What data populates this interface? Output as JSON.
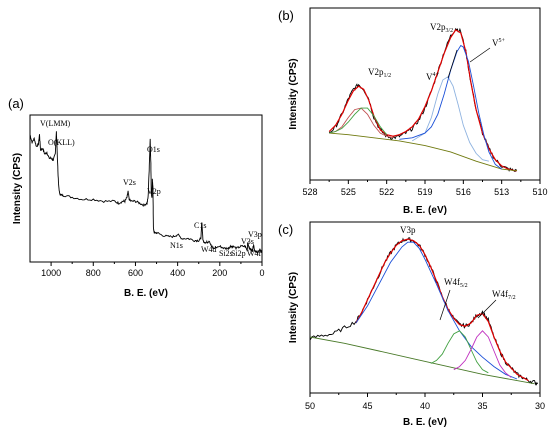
{
  "chart_data": [
    {
      "panel": "(a)",
      "type": "line",
      "xlabel": "B. E. (eV)",
      "ylabel": "Intensity (CPS)",
      "xlim": [
        1100,
        0
      ],
      "xticks": [
        "1000",
        "800",
        "600",
        "400",
        "200",
        "0"
      ],
      "tick_values": [
        1000,
        800,
        600,
        400,
        200,
        0
      ],
      "grid": false,
      "annotations": [
        {
          "text": "V(LMM)",
          "x": 1055
        },
        {
          "text": "O(KLL)",
          "x": 975
        },
        {
          "text": "O1s",
          "x": 530
        },
        {
          "text": "V2s",
          "x": 630
        },
        {
          "text": "V2p",
          "x": 517
        },
        {
          "text": "C1s",
          "x": 285
        },
        {
          "text": "N1s",
          "x": 400
        },
        {
          "text": "W4d",
          "x": 250
        },
        {
          "text": "V3s",
          "x": 68
        },
        {
          "text": "Si2s",
          "x": 150
        },
        {
          "text": "Si2p",
          "x": 100
        },
        {
          "text": "W4f",
          "x": 35
        },
        {
          "text": "V3p",
          "x": 40
        }
      ],
      "series": [
        {
          "values_x": [
            1100,
            1090,
            1080,
            1070,
            1060,
            1055,
            1050,
            1040,
            1030,
            1020,
            1010,
            1000,
            990,
            980,
            975,
            970,
            965,
            960,
            950,
            940,
            900,
            850,
            800,
            750,
            700,
            680,
            660,
            650,
            640,
            635,
            630,
            620,
            600,
            580,
            560,
            545,
            540,
            535,
            530,
            527,
            525,
            522,
            520,
            517,
            515,
            512,
            510,
            500,
            480,
            450,
            420,
            400,
            380,
            350,
            320,
            300,
            290,
            285,
            282,
            280,
            270,
            260,
            250,
            240,
            230,
            200,
            180,
            160,
            150,
            140,
            120,
            100,
            80,
            70,
            68,
            60,
            50,
            45,
            40,
            35,
            30,
            20,
            10,
            0
          ],
          "values_y": [
            90,
            86,
            88,
            84,
            85,
            90,
            82,
            83,
            80,
            81,
            78,
            78,
            77,
            80,
            92,
            78,
            65,
            60,
            59,
            59,
            58,
            57,
            57,
            56,
            56,
            55,
            56,
            56,
            58,
            61,
            57,
            56,
            56,
            55,
            54,
            55,
            58,
            72,
            88,
            75,
            60,
            58,
            67,
            63,
            43,
            40,
            40,
            40,
            39,
            38,
            38,
            39,
            37,
            37,
            36,
            36,
            37,
            45,
            40,
            36,
            35,
            35,
            36,
            33,
            32,
            33,
            32,
            32,
            33,
            33,
            32,
            33,
            33,
            31,
            35,
            32,
            31,
            31,
            34,
            31,
            30,
            30,
            31,
            30
          ]
        }
      ]
    },
    {
      "panel": "(b)",
      "type": "line",
      "xlabel": "B. E. (eV)",
      "ylabel": "Intensity (CPS)",
      "xlim": [
        528,
        510
      ],
      "xticks": [
        "528",
        "525",
        "522",
        "519",
        "516",
        "513",
        "510"
      ],
      "tick_values": [
        528,
        525,
        522,
        519,
        516,
        513,
        510
      ],
      "annotations": [
        {
          "text": "V2p",
          "sub": "1/2",
          "x": 524.3
        },
        {
          "text": "V2p",
          "sub": "3/2",
          "x": 516.6
        },
        {
          "text": "V",
          "sup": "4+",
          "x": 517.6
        },
        {
          "text": "V",
          "sup": "5+",
          "x": 514.2
        }
      ],
      "series": [
        {
          "name_role": "raw",
          "color": "#000000",
          "values_x": [
            526.5,
            526,
            525.5,
            525,
            524.6,
            524.2,
            523.8,
            523.4,
            523,
            522.5,
            522,
            521.5,
            521,
            520.5,
            520,
            519.5,
            519,
            518.5,
            518,
            517.5,
            517,
            516.6,
            516.2,
            515.8,
            515.4,
            515,
            514.5,
            514,
            513.5,
            513,
            512.5,
            512,
            511.8
          ],
          "values_y": [
            0.3,
            0.34,
            0.42,
            0.52,
            0.58,
            0.61,
            0.58,
            0.52,
            0.4,
            0.32,
            0.28,
            0.27,
            0.28,
            0.3,
            0.33,
            0.38,
            0.46,
            0.57,
            0.69,
            0.82,
            0.92,
            0.97,
            0.95,
            0.82,
            0.62,
            0.45,
            0.3,
            0.2,
            0.13,
            0.09,
            0.07,
            0.06,
            0.06
          ]
        },
        {
          "name_role": "fit envelope",
          "color": "#e00000",
          "values_x": [
            526.5,
            526,
            525.5,
            525,
            524.6,
            524.2,
            523.8,
            523.4,
            523,
            522.5,
            522,
            521.5,
            521,
            520.5,
            520,
            519.5,
            519,
            518.5,
            518,
            517.5,
            517,
            516.6,
            516.2,
            515.8,
            515.4,
            515,
            514.5,
            514,
            513.5,
            513,
            512.5,
            512,
            511.8
          ],
          "values_y": [
            0.31,
            0.35,
            0.42,
            0.51,
            0.57,
            0.6,
            0.58,
            0.51,
            0.41,
            0.32,
            0.29,
            0.28,
            0.29,
            0.31,
            0.34,
            0.39,
            0.47,
            0.57,
            0.69,
            0.81,
            0.91,
            0.96,
            0.94,
            0.82,
            0.62,
            0.45,
            0.3,
            0.2,
            0.13,
            0.09,
            0.07,
            0.06,
            0.06
          ]
        },
        {
          "name_role": "background",
          "color": "#707a10",
          "values_x": [
            526.5,
            525,
            523,
            521,
            519,
            517,
            515,
            513,
            512,
            511.8
          ],
          "values_y": [
            0.3,
            0.29,
            0.27,
            0.25,
            0.22,
            0.18,
            0.12,
            0.07,
            0.06,
            0.06
          ]
        },
        {
          "name_role": "V4+ component",
          "color": "#8fb3e0",
          "values_x": [
            520,
            519,
            518.5,
            518,
            517.6,
            517.2,
            516.8,
            516.4,
            516,
            515.5,
            515,
            514.5,
            514
          ],
          "values_y": [
            0.25,
            0.3,
            0.4,
            0.55,
            0.64,
            0.66,
            0.6,
            0.48,
            0.35,
            0.24,
            0.17,
            0.13,
            0.12
          ]
        },
        {
          "name_role": "V5+ component",
          "color": "#1a4fd8",
          "values_x": [
            521,
            520,
            519,
            518.5,
            518,
            517.5,
            517,
            516.5,
            516.2,
            516,
            515.6,
            515.2,
            514.8,
            514.4,
            514,
            513.5,
            513
          ],
          "values_y": [
            0.26,
            0.27,
            0.3,
            0.34,
            0.42,
            0.55,
            0.7,
            0.82,
            0.86,
            0.85,
            0.76,
            0.6,
            0.43,
            0.29,
            0.18,
            0.1,
            0.07
          ]
        },
        {
          "name_role": "V2p1/2 component",
          "color": "#c05050",
          "values_x": [
            526.5,
            526,
            525.5,
            525,
            524.5,
            524,
            523.5,
            523,
            522.5,
            522,
            521.5
          ],
          "values_y": [
            0.3,
            0.31,
            0.34,
            0.4,
            0.45,
            0.46,
            0.42,
            0.35,
            0.3,
            0.28,
            0.27
          ]
        },
        {
          "name_role": "V2p1/2 component 2",
          "color": "#40a040",
          "values_x": [
            526.5,
            526,
            525.5,
            525,
            524.5,
            524,
            523.5,
            523,
            522.5,
            522
          ],
          "values_y": [
            0.3,
            0.31,
            0.33,
            0.37,
            0.42,
            0.46,
            0.46,
            0.41,
            0.34,
            0.29
          ]
        }
      ]
    },
    {
      "panel": "(c)",
      "type": "line",
      "xlabel": "B. E. (eV)",
      "ylabel": "Intensity (CPS)",
      "xlim": [
        50,
        30
      ],
      "xticks": [
        "50",
        "45",
        "40",
        "35",
        "30"
      ],
      "tick_values": [
        50,
        45,
        40,
        35,
        30
      ],
      "annotations": [
        {
          "text": "V3p",
          "x": 41
        },
        {
          "text": "W4f",
          "sub": "5/2",
          "x": 36.5
        },
        {
          "text": "W4f",
          "sub": "7/2",
          "x": 33.5
        }
      ],
      "series": [
        {
          "name_role": "raw",
          "color": "#000000",
          "values_x": [
            50,
            49,
            48,
            47,
            46,
            45.5,
            45,
            44.5,
            44,
            43.5,
            43,
            42.5,
            42,
            41.5,
            41,
            40.5,
            40,
            39.5,
            39,
            38.5,
            38,
            37.5,
            37,
            36.5,
            36,
            35.5,
            35,
            34.5,
            34,
            33.5,
            33,
            32.5,
            32,
            31.5,
            31,
            30.5,
            30.2
          ],
          "values_y": [
            0.35,
            0.37,
            0.38,
            0.42,
            0.46,
            0.52,
            0.6,
            0.68,
            0.76,
            0.84,
            0.9,
            0.95,
            0.98,
            0.99,
            0.98,
            0.95,
            0.89,
            0.81,
            0.72,
            0.62,
            0.54,
            0.48,
            0.44,
            0.43,
            0.45,
            0.5,
            0.52,
            0.47,
            0.36,
            0.27,
            0.2,
            0.16,
            0.12,
            0.1,
            0.08,
            0.07,
            0.06
          ]
        },
        {
          "name_role": "fit envelope",
          "color": "#e00000",
          "values_x": [
            46,
            45.5,
            45,
            44.5,
            44,
            43.5,
            43,
            42.5,
            42,
            41.5,
            41,
            40.5,
            40,
            39.5,
            39,
            38.5,
            38,
            37.5,
            37,
            36.5,
            36,
            35.5,
            35,
            34.5,
            34,
            33.5,
            33,
            32.5,
            32,
            31.5,
            31
          ],
          "values_y": [
            0.45,
            0.52,
            0.6,
            0.68,
            0.76,
            0.84,
            0.9,
            0.95,
            0.98,
            0.99,
            0.98,
            0.95,
            0.89,
            0.81,
            0.72,
            0.62,
            0.54,
            0.48,
            0.44,
            0.43,
            0.45,
            0.5,
            0.51,
            0.46,
            0.36,
            0.27,
            0.2,
            0.16,
            0.12,
            0.1,
            0.08
          ]
        },
        {
          "name_role": "background",
          "color": "#4a7a2a",
          "values_x": [
            50,
            47,
            44,
            41,
            38,
            35,
            32,
            30.5
          ],
          "values_y": [
            0.36,
            0.32,
            0.27,
            0.22,
            0.17,
            0.12,
            0.08,
            0.06
          ]
        },
        {
          "name_role": "V3p component",
          "color": "#1a4fd8",
          "values_x": [
            46,
            45,
            44,
            43,
            42,
            41.5,
            41,
            40.5,
            40,
            39,
            38,
            37,
            36,
            35,
            34,
            33,
            32
          ],
          "values_y": [
            0.45,
            0.56,
            0.7,
            0.84,
            0.94,
            0.97,
            0.97,
            0.93,
            0.86,
            0.7,
            0.53,
            0.4,
            0.3,
            0.23,
            0.17,
            0.12,
            0.09
          ]
        },
        {
          "name_role": "W4f5/2 component",
          "color": "#40a040",
          "values_x": [
            39.5,
            39,
            38.5,
            38,
            37.5,
            37,
            36.5,
            36,
            35.5,
            35,
            34.5
          ],
          "values_y": [
            0.19,
            0.21,
            0.25,
            0.32,
            0.38,
            0.4,
            0.36,
            0.28,
            0.2,
            0.15,
            0.13
          ]
        },
        {
          "name_role": "W4f7/2 component",
          "color": "#c030c0",
          "values_x": [
            37.5,
            37,
            36.5,
            36,
            35.5,
            35,
            34.5,
            34,
            33.5,
            33,
            32.5
          ],
          "values_y": [
            0.15,
            0.17,
            0.21,
            0.28,
            0.36,
            0.4,
            0.36,
            0.27,
            0.18,
            0.13,
            0.1
          ]
        }
      ]
    }
  ]
}
